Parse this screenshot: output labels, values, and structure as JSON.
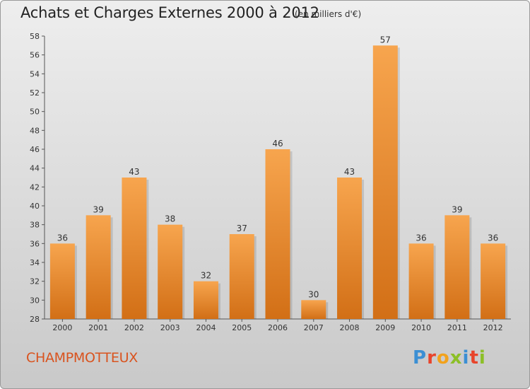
{
  "header": {
    "title": "Achats et Charges Externes 2000 à 2012",
    "subtitle": "(en milliers d'€)"
  },
  "footer": {
    "commune": "CHAMPMOTTEUX",
    "logo_text": "Proxiti"
  },
  "colors": {
    "bar_light": "#f7a54e",
    "bar_dark": "#d26f16",
    "commune_text": "#d9531e",
    "logo_letters": [
      "#3b8fd4",
      "#e8442b",
      "#f2a21c",
      "#8cbf27",
      "#3b8fd4",
      "#e8442b",
      "#8cbf27"
    ]
  },
  "chart_data": {
    "type": "bar",
    "title": "Achats et Charges Externes 2000 à 2012",
    "subtitle": "(en milliers d'€)",
    "categories": [
      "2000",
      "2001",
      "2002",
      "2003",
      "2004",
      "2005",
      "2006",
      "2007",
      "2008",
      "2009",
      "2010",
      "2011",
      "2012"
    ],
    "values": [
      36,
      39,
      43,
      38,
      32,
      37,
      46,
      30,
      43,
      57,
      36,
      39,
      36
    ],
    "ylim": [
      28,
      58
    ],
    "yticks": [
      28,
      30,
      32,
      34,
      36,
      38,
      40,
      42,
      44,
      46,
      48,
      50,
      52,
      54,
      56,
      58
    ],
    "grid": false,
    "data_labels": true
  }
}
